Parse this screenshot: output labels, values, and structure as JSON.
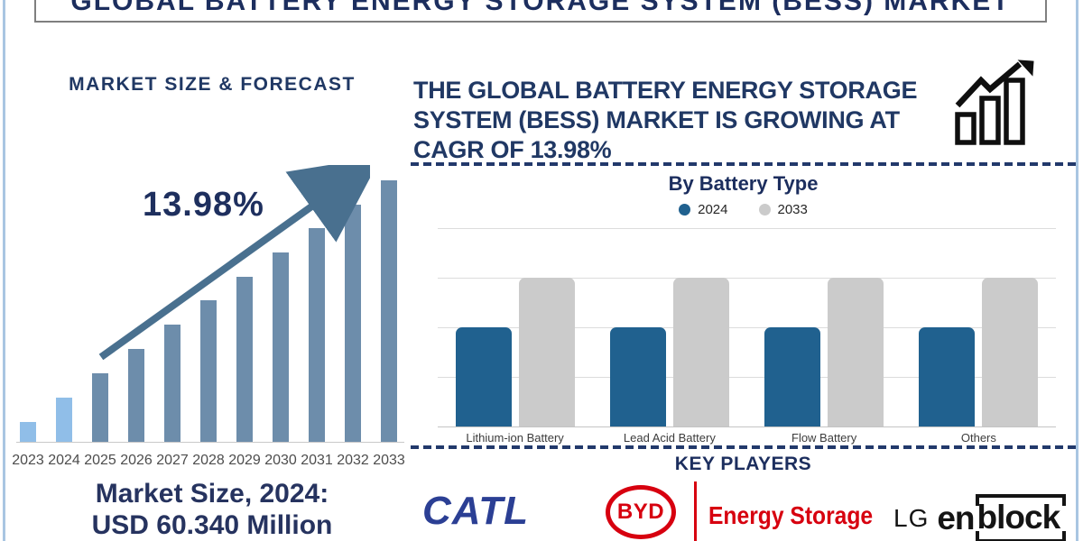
{
  "page": {
    "title": "GLOBAL BATTERY ENERGY STORAGE SYSTEM (BESS) MARKET"
  },
  "left_panel": {
    "heading": "MARKET SIZE & FORECAST",
    "cagr_annotation": "13.98%",
    "market_size_text": "Market Size, 2024:\nUSD 60.340 Million"
  },
  "right_panel": {
    "headline": "THE GLOBAL BATTERY ENERGY STORAGE\nSYSTEM (BESS) MARKET IS GROWING AT\nCAGR OF 13.98%",
    "growth_icon": "bar-chart-with-rising-arrow-icon",
    "battery_chart_title": "By Battery Type",
    "key_players_heading": "KEY PLAYERS",
    "players": {
      "catl": "CATL",
      "byd": "BYD",
      "byd_suffix": "Energy Storage",
      "lg": "LG",
      "lg_product_prefix": "en",
      "lg_product_block": "block"
    }
  },
  "colors": {
    "navy_text": "#203864",
    "steel_arrow": "#49708f",
    "forecast_bar": "#6d8dab",
    "forecast_bar_light": "#90bee8",
    "battery_bar_2024": "#20618f",
    "battery_bar_2033": "#cbcbcb",
    "dashed_separator": "#22396b",
    "catl_blue": "#2b3f94",
    "byd_red": "#d7000f",
    "lg_black": "#141414"
  },
  "chart_data": [
    {
      "type": "bar",
      "title": "MARKET SIZE & FORECAST",
      "categories": [
        "2023",
        "2024",
        "2025",
        "2026",
        "2027",
        "2028",
        "2029",
        "2030",
        "2031",
        "2032",
        "2033"
      ],
      "values": [
        22,
        49,
        76,
        103,
        130,
        157,
        183,
        210,
        237,
        263,
        290
      ],
      "value_unit": "relative bar height (px); no numeric axis shown",
      "known_point": "2024 = USD 60.340 Million",
      "annotation": "13.98% CAGR with rising arrow",
      "xlabel": "",
      "ylabel": "",
      "grid": false,
      "legend": "none",
      "style": {
        "bar_color": "#6d8dab",
        "light_color": "#90bee8",
        "light_count": 2
      }
    },
    {
      "type": "bar",
      "title": "By Battery Type",
      "categories": [
        "Lithium-ion Battery",
        "Lead Acid Battery",
        "Flow Battery",
        "Others"
      ],
      "series": [
        {
          "name": "2024",
          "color": "#20618f",
          "values": [
            40,
            40,
            40,
            40
          ]
        },
        {
          "name": "2033",
          "color": "#cbcbcb",
          "values": [
            60,
            60,
            60,
            60
          ]
        }
      ],
      "ylim": [
        0,
        80
      ],
      "value_unit": "relative units; no numeric axis shown, all categories drawn equal",
      "xlabel": "",
      "ylabel": "",
      "grid": true,
      "legend_position": "top-center"
    }
  ]
}
